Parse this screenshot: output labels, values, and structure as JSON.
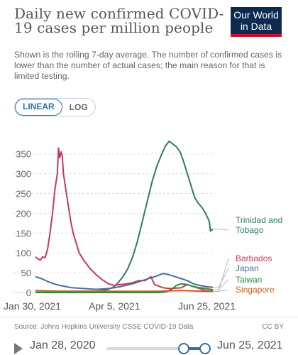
{
  "header": {
    "title": "Daily new confirmed COVID-19 cases per million people",
    "subtitle": "Shown is the rolling 7-day average. The number of confirmed cases is lower than the number of actual cases; the main reason for that is limited testing.",
    "logo_line1": "Our World",
    "logo_line2": "in Data"
  },
  "toggle": {
    "linear_label": "LINEAR",
    "log_label": "LOG",
    "selected": "LINEAR"
  },
  "footer": {
    "source": "Source: Johns Hopkins University CSSE COVID-19 Data",
    "license": "CC BY"
  },
  "timeline": {
    "start_label": "Jan 28, 2020",
    "end_label": "Jun 25, 2021"
  },
  "chart_data": {
    "type": "line",
    "title": "Daily new confirmed COVID-19 cases per million people",
    "xlabel": "",
    "ylabel": "",
    "ylim": [
      0,
      380
    ],
    "y_ticks": [
      0,
      50,
      100,
      150,
      200,
      250,
      300,
      350
    ],
    "y_tick_labels": [
      "0",
      "50",
      "100",
      "150",
      "200",
      "250",
      "300",
      "350"
    ],
    "x_tick_labels": [
      "Jan 30, 2021",
      "Apr 5, 2021",
      "Jun 25, 2021"
    ],
    "x_domain_days": [
      0,
      146
    ],
    "x_tick_days": [
      0,
      65,
      146
    ],
    "grid": true,
    "legend": "right-side labels at line ends",
    "series": [
      {
        "name": "Trinidad and Tobago",
        "color": "#2e7d62",
        "points": [
          [
            0,
            5
          ],
          [
            10,
            4
          ],
          [
            20,
            3
          ],
          [
            30,
            3
          ],
          [
            40,
            3
          ],
          [
            50,
            3
          ],
          [
            55,
            5
          ],
          [
            60,
            8
          ],
          [
            65,
            15
          ],
          [
            68,
            25
          ],
          [
            72,
            40
          ],
          [
            76,
            60
          ],
          [
            80,
            90
          ],
          [
            84,
            130
          ],
          [
            88,
            180
          ],
          [
            92,
            230
          ],
          [
            96,
            280
          ],
          [
            100,
            320
          ],
          [
            104,
            350
          ],
          [
            107,
            370
          ],
          [
            110,
            382
          ],
          [
            113,
            375
          ],
          [
            116,
            368
          ],
          [
            119,
            355
          ],
          [
            122,
            330
          ],
          [
            125,
            300
          ],
          [
            128,
            270
          ],
          [
            131,
            240
          ],
          [
            134,
            225
          ],
          [
            137,
            215
          ],
          [
            140,
            200
          ],
          [
            143,
            180
          ],
          [
            144,
            155
          ],
          [
            146,
            160
          ]
        ]
      },
      {
        "name": "Barbados",
        "color": "#c8385a",
        "points": [
          [
            0,
            90
          ],
          [
            2,
            85
          ],
          [
            4,
            82
          ],
          [
            6,
            90
          ],
          [
            8,
            88
          ],
          [
            10,
            110
          ],
          [
            12,
            150
          ],
          [
            14,
            200
          ],
          [
            16,
            260
          ],
          [
            18,
            300
          ],
          [
            19,
            365
          ],
          [
            20,
            340
          ],
          [
            21,
            355
          ],
          [
            22,
            345
          ],
          [
            23,
            300
          ],
          [
            25,
            260
          ],
          [
            27,
            220
          ],
          [
            29,
            180
          ],
          [
            31,
            150
          ],
          [
            33,
            130
          ],
          [
            36,
            100
          ],
          [
            40,
            80
          ],
          [
            45,
            60
          ],
          [
            50,
            45
          ],
          [
            55,
            32
          ],
          [
            60,
            22
          ],
          [
            65,
            18
          ],
          [
            70,
            20
          ],
          [
            75,
            22
          ],
          [
            80,
            25
          ],
          [
            85,
            30
          ],
          [
            90,
            30
          ],
          [
            95,
            40
          ],
          [
            98,
            20
          ],
          [
            100,
            18
          ],
          [
            105,
            12
          ],
          [
            110,
            10
          ],
          [
            120,
            12
          ],
          [
            125,
            20
          ],
          [
            130,
            15
          ],
          [
            140,
            5
          ],
          [
            146,
            3
          ]
        ]
      },
      {
        "name": "Japan",
        "color": "#4c6a9c",
        "points": [
          [
            0,
            40
          ],
          [
            5,
            35
          ],
          [
            10,
            28
          ],
          [
            15,
            22
          ],
          [
            20,
            18
          ],
          [
            30,
            12
          ],
          [
            40,
            10
          ],
          [
            50,
            8
          ],
          [
            55,
            9
          ],
          [
            60,
            10
          ],
          [
            65,
            12
          ],
          [
            70,
            15
          ],
          [
            80,
            22
          ],
          [
            90,
            32
          ],
          [
            100,
            42
          ],
          [
            105,
            48
          ],
          [
            110,
            45
          ],
          [
            115,
            40
          ],
          [
            120,
            35
          ],
          [
            125,
            30
          ],
          [
            130,
            22
          ],
          [
            135,
            18
          ],
          [
            140,
            15
          ],
          [
            146,
            13
          ]
        ]
      },
      {
        "name": "Taiwan",
        "color": "#2b8a3e",
        "points": [
          [
            0,
            0
          ],
          [
            100,
            0
          ],
          [
            105,
            0.5
          ],
          [
            108,
            2
          ],
          [
            112,
            8
          ],
          [
            116,
            18
          ],
          [
            120,
            22
          ],
          [
            125,
            20
          ],
          [
            130,
            15
          ],
          [
            135,
            12
          ],
          [
            140,
            10
          ],
          [
            146,
            7
          ]
        ]
      },
      {
        "name": "Singapore",
        "color": "#c95e1c",
        "points": [
          [
            0,
            4
          ],
          [
            20,
            3
          ],
          [
            40,
            3
          ],
          [
            60,
            3
          ],
          [
            80,
            3
          ],
          [
            100,
            3
          ],
          [
            110,
            4
          ],
          [
            120,
            5
          ],
          [
            130,
            4
          ],
          [
            140,
            3
          ],
          [
            146,
            3
          ]
        ]
      }
    ]
  }
}
